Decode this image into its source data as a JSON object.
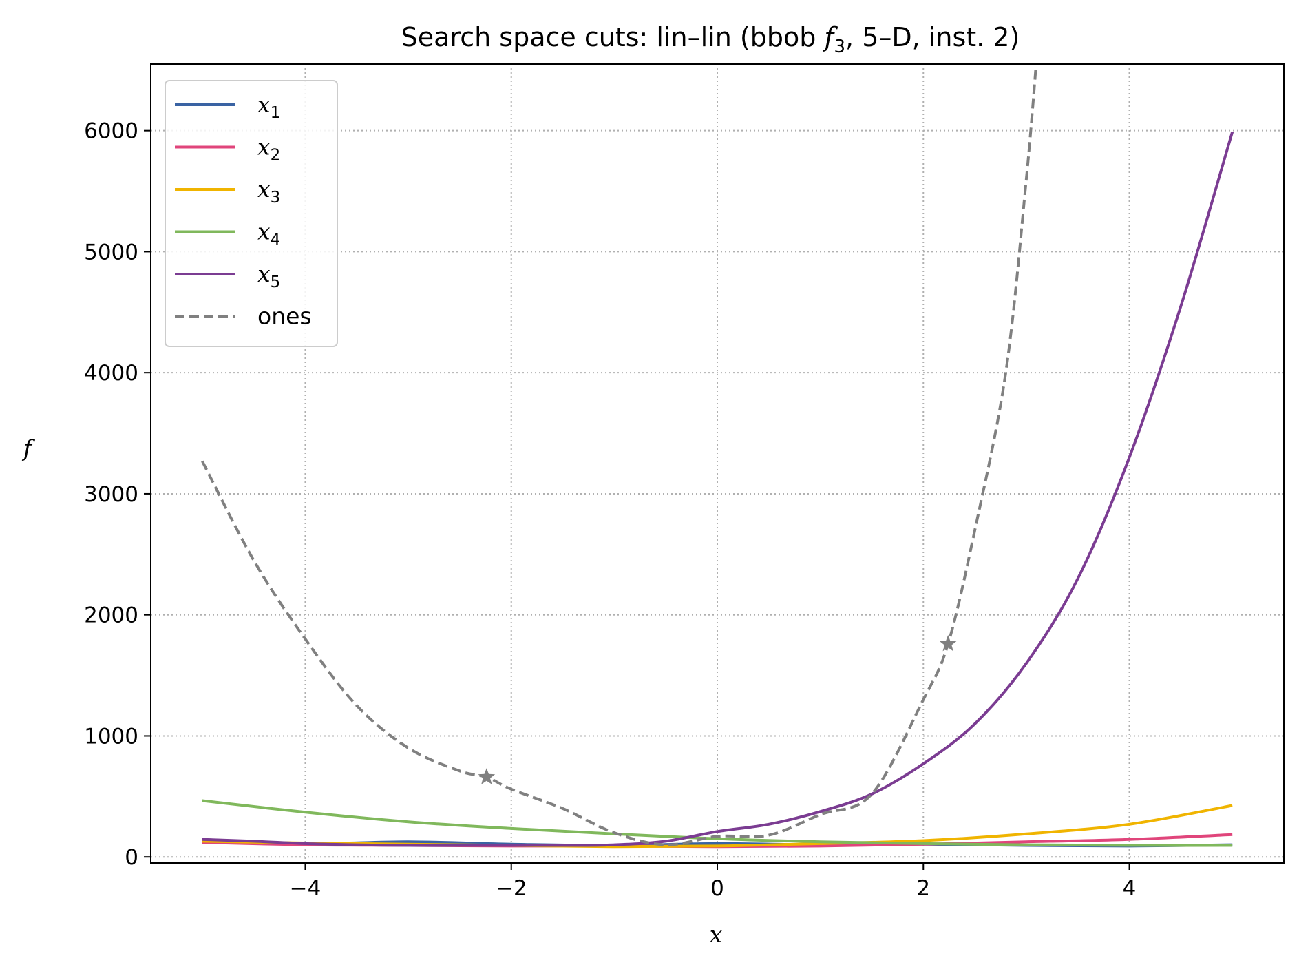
{
  "chart_data": {
    "type": "line",
    "title": "Search space cuts: lin–lin (bbob f₃, 5–D, inst. 2)",
    "title_parts": {
      "pre": "Search space cuts: lin–lin (bbob ",
      "f": "f",
      "sub": "3",
      "post": ", 5–D, inst. 2)"
    },
    "xlabel": "x",
    "ylabel": "f",
    "xlim": [
      -5.5,
      5.5
    ],
    "ylim": [
      -50,
      6550
    ],
    "xticks": [
      -4,
      -2,
      0,
      2,
      4
    ],
    "xtick_labels": [
      "−4",
      "−2",
      "0",
      "2",
      "4"
    ],
    "yticks": [
      0,
      1000,
      2000,
      3000,
      4000,
      5000,
      6000
    ],
    "ytick_labels": [
      "0",
      "1000",
      "2000",
      "3000",
      "4000",
      "5000",
      "6000"
    ],
    "grid": true,
    "legend_position": "upper-left",
    "series": [
      {
        "name": "x1",
        "label_base": "x",
        "label_sub": "1",
        "color": "#3a63a3",
        "dash": "solid",
        "x": [
          -5,
          -4,
          -3,
          -2,
          -1,
          0,
          1,
          2,
          3,
          4,
          5
        ],
        "y": [
          145,
          110,
          125,
          105,
          95,
          110,
          100,
          105,
          95,
          90,
          100
        ]
      },
      {
        "name": "x2",
        "label_base": "x",
        "label_sub": "2",
        "color": "#e0457b",
        "dash": "solid",
        "x": [
          -5,
          -4,
          -3,
          -2,
          -1,
          0,
          1,
          2,
          3,
          4,
          5
        ],
        "y": [
          120,
          100,
          95,
          90,
          90,
          85,
          90,
          105,
          125,
          145,
          185
        ]
      },
      {
        "name": "x3",
        "label_base": "x",
        "label_sub": "3",
        "color": "#f0b400",
        "dash": "solid",
        "x": [
          -5,
          -4,
          -3,
          -2,
          -1,
          0,
          1,
          2,
          3,
          4,
          5
        ],
        "y": [
          130,
          115,
          105,
          95,
          85,
          90,
          110,
          135,
          190,
          270,
          425
        ]
      },
      {
        "name": "x4",
        "label_base": "x",
        "label_sub": "4",
        "color": "#80b85c",
        "dash": "solid",
        "x": [
          -5,
          -4,
          -3,
          -2,
          -1,
          0,
          1,
          2,
          3,
          4,
          5
        ],
        "y": [
          465,
          370,
          290,
          235,
          190,
          150,
          125,
          110,
          100,
          95,
          95
        ]
      },
      {
        "name": "x5",
        "label_base": "x",
        "label_sub": "5",
        "color": "#7b3c92",
        "dash": "solid",
        "x": [
          -5,
          -4.5,
          -4,
          -3.5,
          -3,
          -2.5,
          -2,
          -1.5,
          -1,
          -0.5,
          0,
          0.5,
          1,
          1.5,
          2,
          2.5,
          3,
          3.5,
          4,
          4.5,
          5
        ],
        "y": [
          145,
          130,
          110,
          100,
          95,
          95,
          95,
          95,
          100,
          130,
          210,
          270,
          375,
          520,
          770,
          1100,
          1600,
          2300,
          3300,
          4550,
          5990
        ]
      },
      {
        "name": "ones",
        "label_base": "ones",
        "label_sub": "",
        "color": "#808080",
        "dash": "dashed",
        "x": [
          -5,
          -4.5,
          -4,
          -3.5,
          -3,
          -2.5,
          -2.24,
          -2,
          -1.5,
          -1,
          -0.5,
          0,
          0.5,
          1,
          1.5,
          2,
          2.24,
          2.5,
          2.8,
          3.0,
          3.1
        ],
        "y": [
          3270,
          2450,
          1800,
          1250,
          900,
          710,
          660,
          560,
          400,
          200,
          100,
          170,
          180,
          350,
          520,
          1300,
          1760,
          2700,
          4000,
          5600,
          6600
        ]
      }
    ],
    "markers": [
      {
        "x": -2.24,
        "y": 660,
        "symbol": "star",
        "color": "#808080"
      },
      {
        "x": 2.24,
        "y": 1760,
        "symbol": "star",
        "color": "#808080"
      }
    ]
  }
}
